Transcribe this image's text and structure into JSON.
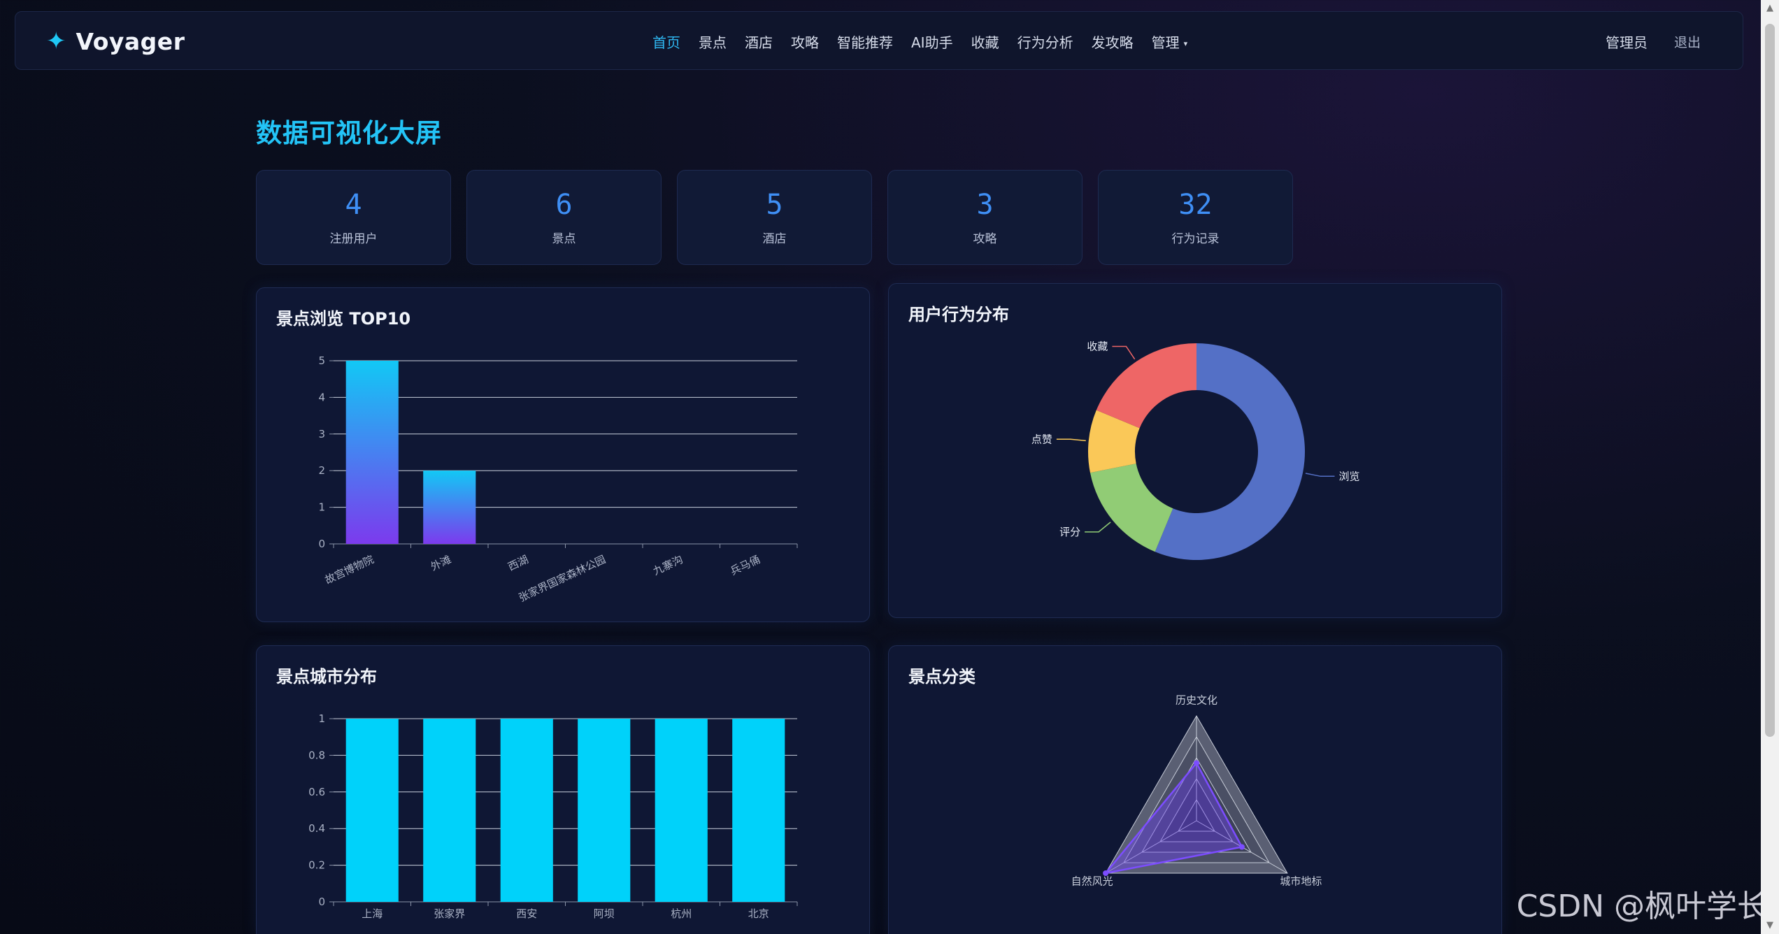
{
  "brand": {
    "icon": "sparkle-icon",
    "name": "Voyager"
  },
  "nav": {
    "items": [
      {
        "label": "首页",
        "active": true
      },
      {
        "label": "景点"
      },
      {
        "label": "酒店"
      },
      {
        "label": "攻略"
      },
      {
        "label": "智能推荐"
      },
      {
        "label": "AI助手"
      },
      {
        "label": "收藏"
      },
      {
        "label": "行为分析"
      },
      {
        "label": "发攻略"
      },
      {
        "label": "管理",
        "dropdown": true
      }
    ],
    "user": "管理员",
    "logout": "退出"
  },
  "page": {
    "title": "数据可视化大屏"
  },
  "stats": [
    {
      "value": "4",
      "label": "注册用户"
    },
    {
      "value": "6",
      "label": "景点"
    },
    {
      "value": "5",
      "label": "酒店"
    },
    {
      "value": "3",
      "label": "攻略"
    },
    {
      "value": "32",
      "label": "行为记录"
    }
  ],
  "chart_data": [
    {
      "type": "bar",
      "title": "景点浏览 TOP10",
      "categories": [
        "故宫博物院",
        "外滩",
        "西湖",
        "张家界国家森林公园",
        "九寨沟",
        "兵马俑"
      ],
      "values": [
        5,
        2,
        0,
        0,
        0,
        0
      ],
      "ylim": [
        0,
        5
      ],
      "yticks": [
        "0",
        "1",
        "2",
        "3",
        "4",
        "5"
      ],
      "colors": {
        "top": "#12c8f5",
        "bottom": "#7c3aed"
      },
      "grid": true
    },
    {
      "type": "pie",
      "title": "用户行为分布",
      "slices": [
        {
          "name": "浏览",
          "value": 18,
          "color": "#5470c6"
        },
        {
          "name": "评分",
          "value": 5,
          "color": "#91cc75"
        },
        {
          "name": "点赞",
          "value": 3,
          "color": "#fac858"
        },
        {
          "name": "收藏",
          "value": 6,
          "color": "#ee6666"
        }
      ]
    },
    {
      "type": "bar",
      "title": "景点城市分布",
      "categories": [
        "上海",
        "张家界",
        "西安",
        "阿坝",
        "杭州",
        "北京"
      ],
      "values": [
        1,
        1,
        1,
        1,
        1,
        1
      ],
      "ylim": [
        0,
        1
      ],
      "yticks": [
        "0",
        "0.2",
        "0.4",
        "0.6",
        "0.8",
        "1"
      ],
      "colors": {
        "bar": "#00d2fa"
      },
      "grid": true
    },
    {
      "type": "radar",
      "title": "景点分类",
      "indicators": [
        "历史文化",
        "城市地标",
        "自然风光"
      ],
      "values": [
        0.55,
        0.5,
        1.0
      ],
      "colors": {
        "line": "#7c4dff",
        "fill": "rgba(110,70,240,0.45)"
      }
    }
  ],
  "watermark": "CSDN @枫叶学长"
}
